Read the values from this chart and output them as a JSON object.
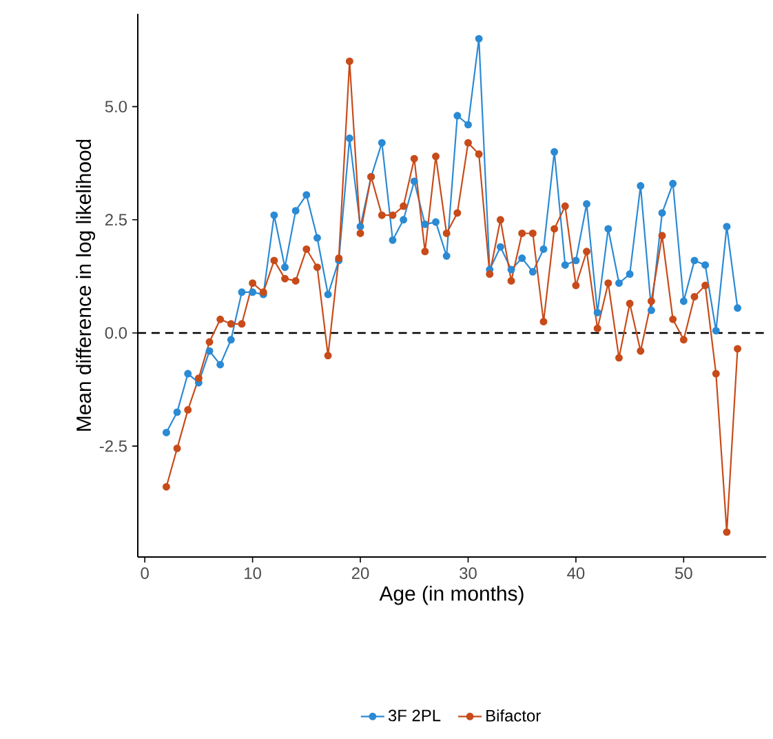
{
  "chart_data": {
    "type": "line",
    "xlabel": "Age (in months)",
    "ylabel": "Mean difference in log likelihood",
    "x": [
      2,
      3,
      4,
      5,
      6,
      7,
      8,
      9,
      10,
      11,
      12,
      13,
      14,
      15,
      16,
      17,
      18,
      19,
      20,
      21,
      22,
      23,
      24,
      25,
      26,
      27,
      28,
      29,
      30,
      31,
      32,
      33,
      34,
      35,
      36,
      37,
      38,
      39,
      40,
      41,
      42,
      43,
      44,
      45,
      46,
      47,
      48,
      49,
      50,
      51,
      52,
      53,
      54,
      55
    ],
    "series": [
      {
        "name": "3F 2PL",
        "color": "#2b8ad4",
        "values": [
          -2.2,
          -1.75,
          -0.9,
          -1.1,
          -0.4,
          -0.7,
          -0.15,
          0.9,
          0.9,
          0.85,
          2.6,
          1.45,
          2.7,
          3.05,
          2.1,
          0.85,
          1.6,
          4.3,
          2.35,
          3.45,
          4.2,
          2.05,
          2.5,
          3.35,
          2.4,
          2.45,
          1.7,
          4.8,
          4.6,
          6.5,
          1.4,
          1.9,
          1.4,
          1.65,
          1.35,
          1.85,
          4.0,
          1.5,
          1.6,
          2.85,
          0.45,
          2.3,
          1.1,
          1.3,
          3.25,
          0.5,
          2.65,
          3.3,
          0.7,
          1.6,
          1.5,
          0.05,
          2.35,
          0.55
        ]
      },
      {
        "name": "Bifactor",
        "color": "#c84b1a",
        "values": [
          -3.4,
          -2.55,
          -1.7,
          -1.0,
          -0.2,
          0.3,
          0.2,
          0.2,
          1.1,
          0.9,
          1.6,
          1.2,
          1.15,
          1.85,
          1.45,
          -0.5,
          1.65,
          6.0,
          2.2,
          3.45,
          2.6,
          2.6,
          2.8,
          3.85,
          1.8,
          3.9,
          2.2,
          2.65,
          4.2,
          3.95,
          1.3,
          2.5,
          1.15,
          2.2,
          2.2,
          0.25,
          2.3,
          2.8,
          1.05,
          1.8,
          0.1,
          1.1,
          -0.55,
          0.65,
          -0.4,
          0.7,
          2.15,
          0.3,
          -0.15,
          0.8,
          1.05,
          -0.9,
          -4.4,
          -0.35
        ]
      }
    ],
    "xlim": [
      -0.65,
      57.65
    ],
    "ylim": [
      -4.95,
      7.05
    ],
    "xticks": [
      0,
      10,
      20,
      30,
      40,
      50
    ],
    "yticks": [
      {
        "value": -2.5,
        "label": "-2.5"
      },
      {
        "value": 0,
        "label": "0.0"
      },
      {
        "value": 2.5,
        "label": "2.5"
      },
      {
        "value": 5,
        "label": "5.0"
      }
    ],
    "ref_lines": [
      {
        "axis": "y",
        "value": 0,
        "color": "#000000",
        "line_style": "dashed"
      }
    ],
    "grid": false,
    "legend": "bottom",
    "marker": "circle",
    "line_style": "solid"
  }
}
